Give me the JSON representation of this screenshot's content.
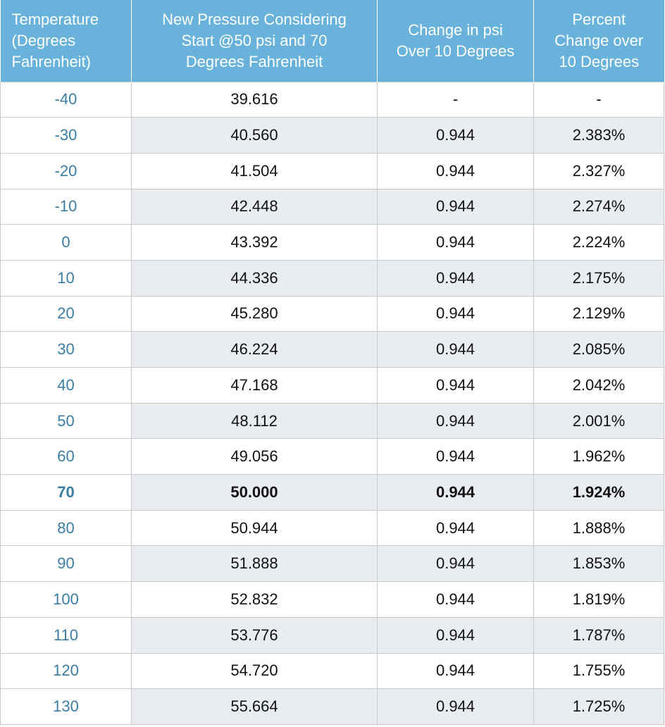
{
  "table": {
    "header": [
      [
        "Temperature",
        "(Degrees",
        "Fahrenheit)"
      ],
      [
        "New Pressure Considering",
        "Start @50 psi and 70",
        "Degrees Fahrenheit"
      ],
      [
        "Change in psi",
        "Over 10 Degrees"
      ],
      [
        "Percent",
        "Change over",
        "10 Degrees"
      ]
    ],
    "rows": [
      [
        "-40",
        "39.616",
        "-",
        "-"
      ],
      [
        "-30",
        "40.560",
        "0.944",
        "2.383%"
      ],
      [
        "-20",
        "41.504",
        "0.944",
        "2.327%"
      ],
      [
        "-10",
        "42.448",
        "0.944",
        "2.274%"
      ],
      [
        "0",
        "43.392",
        "0.944",
        "2.224%"
      ],
      [
        "10",
        "44.336",
        "0.944",
        "2.175%"
      ],
      [
        "20",
        "45.280",
        "0.944",
        "2.129%"
      ],
      [
        "30",
        "46.224",
        "0.944",
        "2.085%"
      ],
      [
        "40",
        "47.168",
        "0.944",
        "2.042%"
      ],
      [
        "50",
        "48.112",
        "0.944",
        "2.001%"
      ],
      [
        "60",
        "49.056",
        "0.944",
        "1.962%"
      ],
      [
        "70",
        "50.000",
        "0.944",
        "1.924%"
      ],
      [
        "80",
        "50.944",
        "0.944",
        "1.888%"
      ],
      [
        "90",
        "51.888",
        "0.944",
        "1.853%"
      ],
      [
        "100",
        "52.832",
        "0.944",
        "1.819%"
      ],
      [
        "110",
        "53.776",
        "0.944",
        "1.787%"
      ],
      [
        "120",
        "54.720",
        "0.944",
        "1.755%"
      ],
      [
        "130",
        "55.664",
        "0.944",
        "1.725%"
      ]
    ]
  }
}
